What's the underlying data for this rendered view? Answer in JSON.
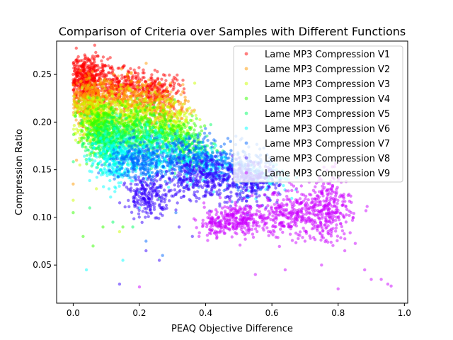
{
  "chart_data": {
    "type": "scatter",
    "title": "Comparison of Criteria over Samples with Different Functions",
    "xlabel": "PEAQ Objective Difference",
    "ylabel": "Compression Ratio",
    "xlim": [
      -0.05,
      1.01
    ],
    "ylim": [
      0.01,
      0.285
    ],
    "x_ticks": [
      0.0,
      0.2,
      0.4,
      0.6,
      0.8,
      1.0
    ],
    "x_tick_labels": [
      "0.0",
      "0.2",
      "0.4",
      "0.6",
      "0.8",
      "1.0"
    ],
    "y_ticks": [
      0.05,
      0.1,
      0.15,
      0.2,
      0.25
    ],
    "y_tick_labels": [
      "0.05",
      "0.10",
      "0.15",
      "0.20",
      "0.25"
    ],
    "grid": false,
    "legend_position": "top-right",
    "marker_alpha": 0.5,
    "series": [
      {
        "name": "Lame MP3 Compression V1",
        "color": "#ff0000",
        "clusters": [
          {
            "center": [
              0.04,
              0.245
            ],
            "spread": [
              0.025,
              0.012
            ],
            "count": 420
          },
          {
            "center": [
              0.13,
              0.238
            ],
            "spread": [
              0.045,
              0.01
            ],
            "count": 260
          },
          {
            "center": [
              0.25,
              0.232
            ],
            "spread": [
              0.04,
              0.01
            ],
            "count": 220
          }
        ],
        "outliers": [
          [
            0.0,
            0.25
          ],
          [
            0.02,
            0.21
          ],
          [
            0.03,
            0.195
          ],
          [
            0.05,
            0.23
          ],
          [
            0.07,
            0.25
          ],
          [
            0.29,
            0.21
          ]
        ]
      },
      {
        "name": "Lame MP3 Compression V2",
        "color": "#ff9900",
        "clusters": [
          {
            "center": [
              0.05,
              0.22
            ],
            "spread": [
              0.025,
              0.012
            ],
            "count": 330
          },
          {
            "center": [
              0.16,
              0.222
            ],
            "spread": [
              0.05,
              0.012
            ],
            "count": 300
          },
          {
            "center": [
              0.28,
              0.215
            ],
            "spread": [
              0.035,
              0.01
            ],
            "count": 160
          }
        ],
        "outliers": [
          [
            0.0,
            0.135
          ],
          [
            0.01,
            0.16
          ],
          [
            0.02,
            0.18
          ],
          [
            0.05,
            0.205
          ]
        ]
      },
      {
        "name": "Lame MP3 Compression V3",
        "color": "#ccff00",
        "clusters": [
          {
            "center": [
              0.06,
              0.205
            ],
            "spread": [
              0.03,
              0.013
            ],
            "count": 300
          },
          {
            "center": [
              0.18,
              0.208
            ],
            "spread": [
              0.055,
              0.012
            ],
            "count": 300
          },
          {
            "center": [
              0.3,
              0.198
            ],
            "spread": [
              0.035,
              0.01
            ],
            "count": 150
          }
        ],
        "outliers": [
          [
            0.0,
            0.118
          ],
          [
            0.02,
            0.155
          ],
          [
            0.07,
            0.13
          ],
          [
            0.14,
            0.085
          ]
        ]
      },
      {
        "name": "Lame MP3 Compression V4",
        "color": "#33ff00",
        "clusters": [
          {
            "center": [
              0.08,
              0.192
            ],
            "spread": [
              0.03,
              0.013
            ],
            "count": 280
          },
          {
            "center": [
              0.2,
              0.195
            ],
            "spread": [
              0.055,
              0.012
            ],
            "count": 280
          },
          {
            "center": [
              0.33,
              0.183
            ],
            "spread": [
              0.035,
              0.01
            ],
            "count": 140
          }
        ],
        "outliers": [
          [
            0.0,
            0.105
          ],
          [
            0.03,
            0.08
          ],
          [
            0.06,
            0.07
          ],
          [
            0.09,
            0.09
          ],
          [
            0.15,
            0.09
          ]
        ]
      },
      {
        "name": "Lame MP3 Compression V5",
        "color": "#00ff66",
        "clusters": [
          {
            "center": [
              0.1,
              0.178
            ],
            "spread": [
              0.03,
              0.013
            ],
            "count": 260
          },
          {
            "center": [
              0.22,
              0.182
            ],
            "spread": [
              0.055,
              0.012
            ],
            "count": 260
          },
          {
            "center": [
              0.36,
              0.17
            ],
            "spread": [
              0.035,
              0.01
            ],
            "count": 120
          }
        ],
        "outliers": [
          [
            0.05,
            0.11
          ],
          [
            0.12,
            0.095
          ],
          [
            0.18,
            0.09
          ],
          [
            0.26,
            0.12
          ]
        ]
      },
      {
        "name": "Lame MP3 Compression V6",
        "color": "#00ffff",
        "clusters": [
          {
            "center": [
              0.12,
              0.16
            ],
            "spread": [
              0.035,
              0.013
            ],
            "count": 260
          },
          {
            "center": [
              0.25,
              0.168
            ],
            "spread": [
              0.06,
              0.012
            ],
            "count": 260
          },
          {
            "center": [
              0.4,
              0.158
            ],
            "spread": [
              0.04,
              0.01
            ],
            "count": 140
          },
          {
            "center": [
              0.58,
              0.14
            ],
            "spread": [
              0.04,
              0.008
            ],
            "count": 90
          }
        ],
        "outliers": [
          [
            0.04,
            0.045
          ],
          [
            0.15,
            0.055
          ],
          [
            0.2,
            0.11
          ],
          [
            0.66,
            0.12
          ]
        ]
      },
      {
        "name": "Lame MP3 Compression V7",
        "color": "#0066ff",
        "clusters": [
          {
            "center": [
              0.2,
              0.158
            ],
            "spread": [
              0.045,
              0.01
            ],
            "count": 240
          },
          {
            "center": [
              0.35,
              0.16
            ],
            "spread": [
              0.06,
              0.012
            ],
            "count": 300
          },
          {
            "center": [
              0.5,
              0.15
            ],
            "spread": [
              0.05,
              0.012
            ],
            "count": 220
          }
        ],
        "outliers": [
          [
            0.22,
            0.075
          ],
          [
            0.27,
            0.06
          ],
          [
            0.31,
            0.105
          ],
          [
            0.44,
            0.095
          ]
        ]
      },
      {
        "name": "Lame MP3 Compression V8",
        "color": "#3300ff",
        "clusters": [
          {
            "center": [
              0.23,
              0.122
            ],
            "spread": [
              0.035,
              0.01
            ],
            "count": 220
          },
          {
            "center": [
              0.4,
              0.142
            ],
            "spread": [
              0.06,
              0.012
            ],
            "count": 320
          },
          {
            "center": [
              0.54,
              0.136
            ],
            "spread": [
              0.04,
              0.01
            ],
            "count": 200
          }
        ],
        "outliers": [
          [
            0.14,
            0.03
          ],
          [
            0.22,
            0.065
          ],
          [
            0.26,
            0.055
          ],
          [
            0.32,
            0.09
          ],
          [
            0.36,
            0.08
          ]
        ]
      },
      {
        "name": "Lame MP3 Compression V9",
        "color": "#cc00ff",
        "clusters": [
          {
            "center": [
              0.5,
              0.098
            ],
            "spread": [
              0.05,
              0.008
            ],
            "count": 260
          },
          {
            "center": [
              0.67,
              0.103
            ],
            "spread": [
              0.06,
              0.012
            ],
            "count": 340
          },
          {
            "center": [
              0.78,
              0.11
            ],
            "spread": [
              0.03,
              0.018
            ],
            "count": 220
          },
          {
            "center": [
              0.43,
              0.09
            ],
            "spread": [
              0.02,
              0.006
            ],
            "count": 60
          }
        ],
        "outliers": [
          [
            0.2,
            0.027
          ],
          [
            0.38,
            0.08
          ],
          [
            0.55,
            0.04
          ],
          [
            0.64,
            0.045
          ],
          [
            0.7,
            0.075
          ],
          [
            0.75,
            0.05
          ],
          [
            0.8,
            0.025
          ],
          [
            0.82,
            0.065
          ],
          [
            0.88,
            0.045
          ],
          [
            0.9,
            0.035
          ],
          [
            0.93,
            0.035
          ],
          [
            0.95,
            0.03
          ],
          [
            0.96,
            0.028
          ]
        ]
      }
    ]
  }
}
